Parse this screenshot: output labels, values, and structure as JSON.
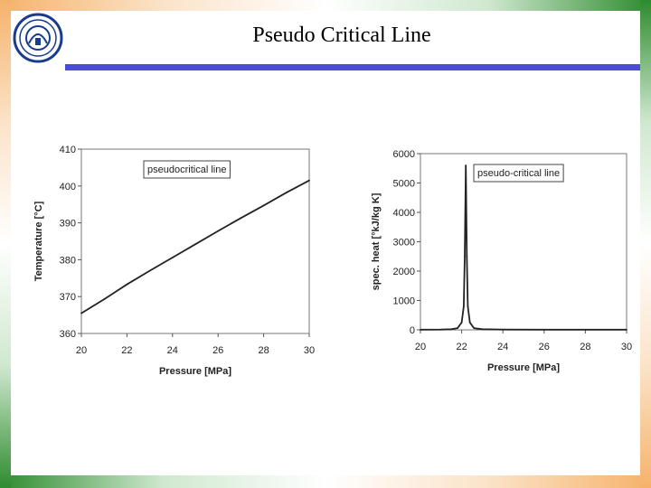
{
  "slide": {
    "title": "Pseudo Critical Line",
    "logo_icon": "institute-seal-icon",
    "colors": {
      "accent_bar": "#4a4bd6",
      "frame_orange": "#f6b26b",
      "frame_green": "#2e8b2e"
    }
  },
  "chart_data": [
    {
      "type": "line",
      "title": "",
      "xlabel": "Pressure [MPa]",
      "ylabel": "Temperature [°C]",
      "xlim": [
        20,
        30
      ],
      "ylim": [
        360,
        410
      ],
      "xticks": [
        20,
        22,
        24,
        26,
        28,
        30
      ],
      "yticks": [
        360,
        370,
        380,
        390,
        400,
        410
      ],
      "grid": false,
      "legend": "top-left",
      "series": [
        {
          "name": "pseudocritical line",
          "x": [
            20,
            21,
            22,
            23,
            24,
            25,
            26,
            27,
            28,
            29,
            30
          ],
          "y": [
            365.5,
            369.3,
            373.3,
            377.0,
            380.6,
            384.2,
            387.8,
            391.3,
            394.7,
            398.2,
            401.5
          ]
        }
      ]
    },
    {
      "type": "line",
      "title": "",
      "xlabel": "Pressure [MPa]",
      "ylabel": "spec. heat [°kJ/kg K]",
      "xlim": [
        20,
        30
      ],
      "ylim": [
        0,
        6000
      ],
      "xticks": [
        20,
        22,
        24,
        26,
        28,
        30
      ],
      "yticks": [
        0,
        1000,
        2000,
        3000,
        4000,
        5000,
        6000
      ],
      "grid": false,
      "legend": "top-right",
      "series": [
        {
          "name": "pseudo-critical line",
          "x": [
            20,
            21,
            21.5,
            21.8,
            22.0,
            22.1,
            22.15,
            22.2,
            22.25,
            22.3,
            22.4,
            22.6,
            23,
            24,
            26,
            28,
            30
          ],
          "y": [
            5,
            10,
            20,
            60,
            250,
            800,
            2500,
            5600,
            2500,
            800,
            250,
            60,
            20,
            10,
            5,
            5,
            5
          ]
        }
      ]
    }
  ]
}
